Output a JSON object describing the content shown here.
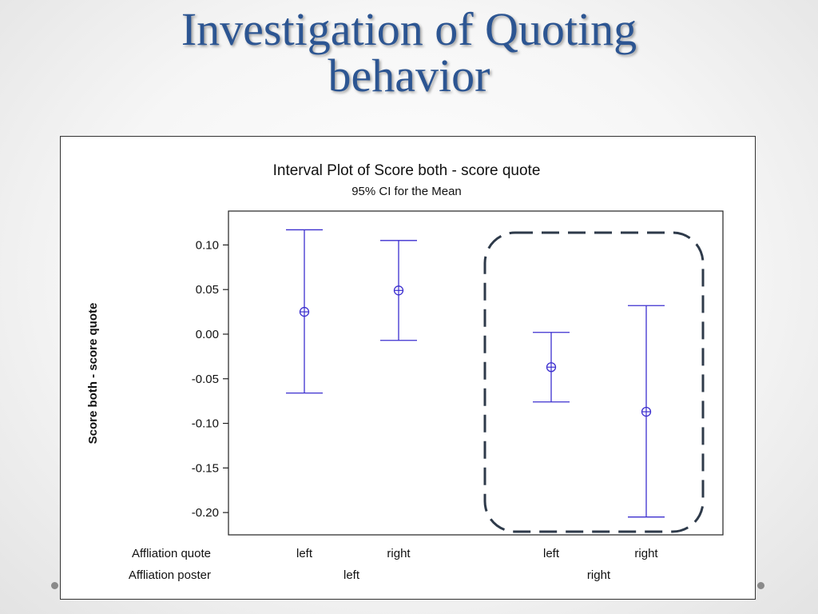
{
  "slide": {
    "title_line1": "Investigation of Quoting",
    "title_line2": "behavior"
  },
  "colors": {
    "title": "#2c5592",
    "series": "#3c2fcf",
    "highlight_box": "#2e3a4a"
  },
  "chart_data": {
    "type": "interval",
    "title": "Interval Plot of Score both - score quote",
    "subtitle": "95% CI for the Mean",
    "ylabel": "Score both - score quote",
    "ylim": [
      -0.225,
      0.138
    ],
    "yticks": [
      0.1,
      0.05,
      0.0,
      -0.05,
      -0.1,
      -0.15,
      -0.2
    ],
    "ytick_labels": [
      "0.10",
      "0.05",
      "0.00",
      "-0.05",
      "-0.10",
      "-0.15",
      "-0.20"
    ],
    "row_labels": [
      "Affliation quote",
      "Affliation poster"
    ],
    "groups": [
      {
        "poster": "left",
        "quote": "left",
        "mean": 0.025,
        "lower": -0.066,
        "upper": 0.117
      },
      {
        "poster": "left",
        "quote": "right",
        "mean": 0.049,
        "lower": -0.007,
        "upper": 0.105
      },
      {
        "poster": "right",
        "quote": "left",
        "mean": -0.037,
        "lower": -0.076,
        "upper": 0.002
      },
      {
        "poster": "right",
        "quote": "right",
        "mean": -0.087,
        "lower": -0.205,
        "upper": 0.032
      }
    ],
    "poster_labels": [
      "left",
      "right"
    ],
    "highlighted_poster": "right"
  }
}
